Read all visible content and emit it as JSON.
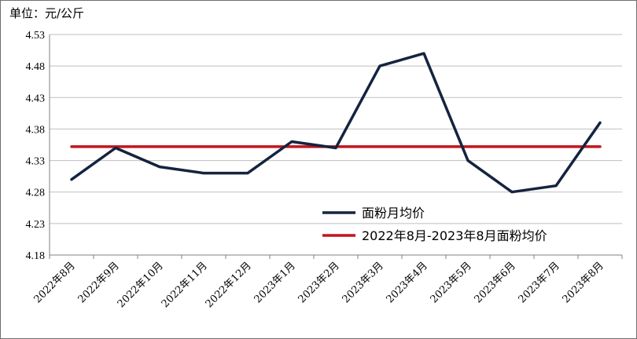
{
  "unit": "单位：元/公斤",
  "chart_data": {
    "type": "line",
    "categories": [
      "2022年8月",
      "2022年9月",
      "2022年10月",
      "2022年11月",
      "2022年12月",
      "2023年1月",
      "2023年2月",
      "2023年3月",
      "2023年4月",
      "2023年5月",
      "2023年6月",
      "2023年7月",
      "2023年8月"
    ],
    "series": [
      {
        "name": "面粉月均价",
        "values": [
          4.3,
          4.35,
          4.32,
          4.31,
          4.31,
          4.36,
          4.35,
          4.48,
          4.5,
          4.33,
          4.28,
          4.29,
          4.39
        ],
        "color": "#14243f"
      },
      {
        "name": "2022年8月-2023年8月面粉均价",
        "values": [
          4.352,
          4.352,
          4.352,
          4.352,
          4.352,
          4.352,
          4.352,
          4.352,
          4.352,
          4.352,
          4.352,
          4.352,
          4.352
        ],
        "color": "#c0161c"
      }
    ],
    "yticks": [
      "4.53",
      "4.48",
      "4.43",
      "4.38",
      "4.33",
      "4.28",
      "4.23",
      "4.18"
    ],
    "ylim": [
      4.18,
      4.53
    ],
    "grid": true,
    "legend_position": "bottom-right"
  }
}
